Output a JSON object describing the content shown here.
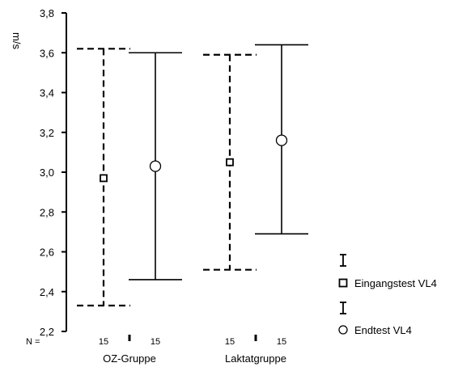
{
  "chart_data": {
    "type": "errorbar",
    "title": "",
    "xlabel": "",
    "ylabel": "m/s",
    "ylim": [
      2.2,
      3.8
    ],
    "yticks": [
      "2,2",
      "2,4",
      "2,6",
      "2,8",
      "3,0",
      "3,2",
      "3,4",
      "3,6",
      "3,8"
    ],
    "grid": false,
    "legend_position": "bottom-right",
    "n_prefix": "N =",
    "categories": [
      "OZ-Gruppe",
      "Laktatgruppe"
    ],
    "series": [
      {
        "name": "Eingangstest VL4",
        "marker": "square",
        "line": "dashed",
        "mean": [
          2.97,
          3.05
        ],
        "upper": [
          3.62,
          3.59
        ],
        "lower": [
          2.33,
          2.51
        ],
        "n": [
          "15",
          "15"
        ]
      },
      {
        "name": "Endtest VL4",
        "marker": "circle",
        "line": "solid",
        "mean": [
          3.03,
          3.16
        ],
        "upper": [
          3.6,
          3.64
        ],
        "lower": [
          2.46,
          2.69
        ],
        "n": [
          "15",
          "15"
        ]
      }
    ]
  }
}
